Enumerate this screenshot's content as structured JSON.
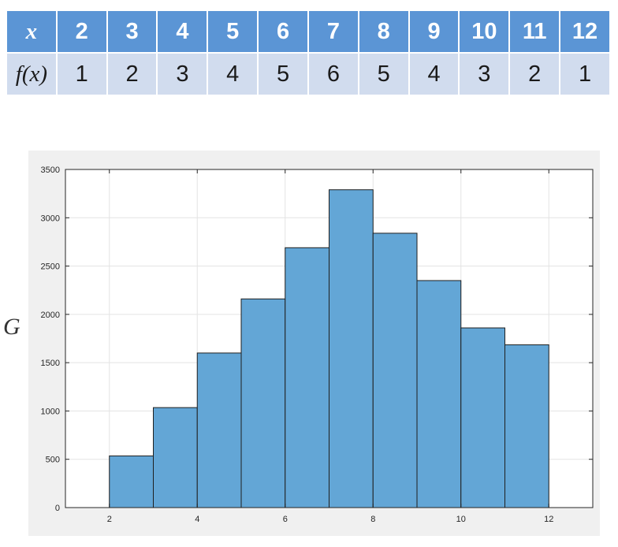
{
  "table": {
    "row1_label": "x",
    "row1_values": [
      "2",
      "3",
      "4",
      "5",
      "6",
      "7",
      "8",
      "9",
      "10",
      "11",
      "12"
    ],
    "row2_label": "f(x)",
    "row2_values": [
      "1",
      "2",
      "3",
      "4",
      "5",
      "6",
      "5",
      "4",
      "3",
      "2",
      "1"
    ]
  },
  "side_glyph": "G",
  "colors": {
    "bar_fill": "#63a6d6",
    "header_bg": "#5b95d5",
    "row_bg": "#d1dcee",
    "figure_bg": "#f0f0f0"
  },
  "chart_data": {
    "type": "bar",
    "title": "",
    "xlabel": "",
    "ylabel": "",
    "bins": [
      [
        2,
        3
      ],
      [
        3,
        4
      ],
      [
        4,
        5
      ],
      [
        5,
        6
      ],
      [
        6,
        7
      ],
      [
        7,
        8
      ],
      [
        8,
        9
      ],
      [
        9,
        10
      ],
      [
        10,
        11
      ],
      [
        11,
        12
      ]
    ],
    "values": [
      535,
      1035,
      1600,
      2160,
      2690,
      3290,
      2840,
      2350,
      1860,
      1685
    ],
    "xlim": [
      1,
      13
    ],
    "ylim": [
      0,
      3500
    ],
    "xticks": [
      "2",
      "4",
      "6",
      "8",
      "10",
      "12"
    ],
    "yticks": [
      "0",
      "500",
      "1000",
      "1500",
      "2000",
      "2500",
      "3000",
      "3500"
    ],
    "grid": true
  }
}
